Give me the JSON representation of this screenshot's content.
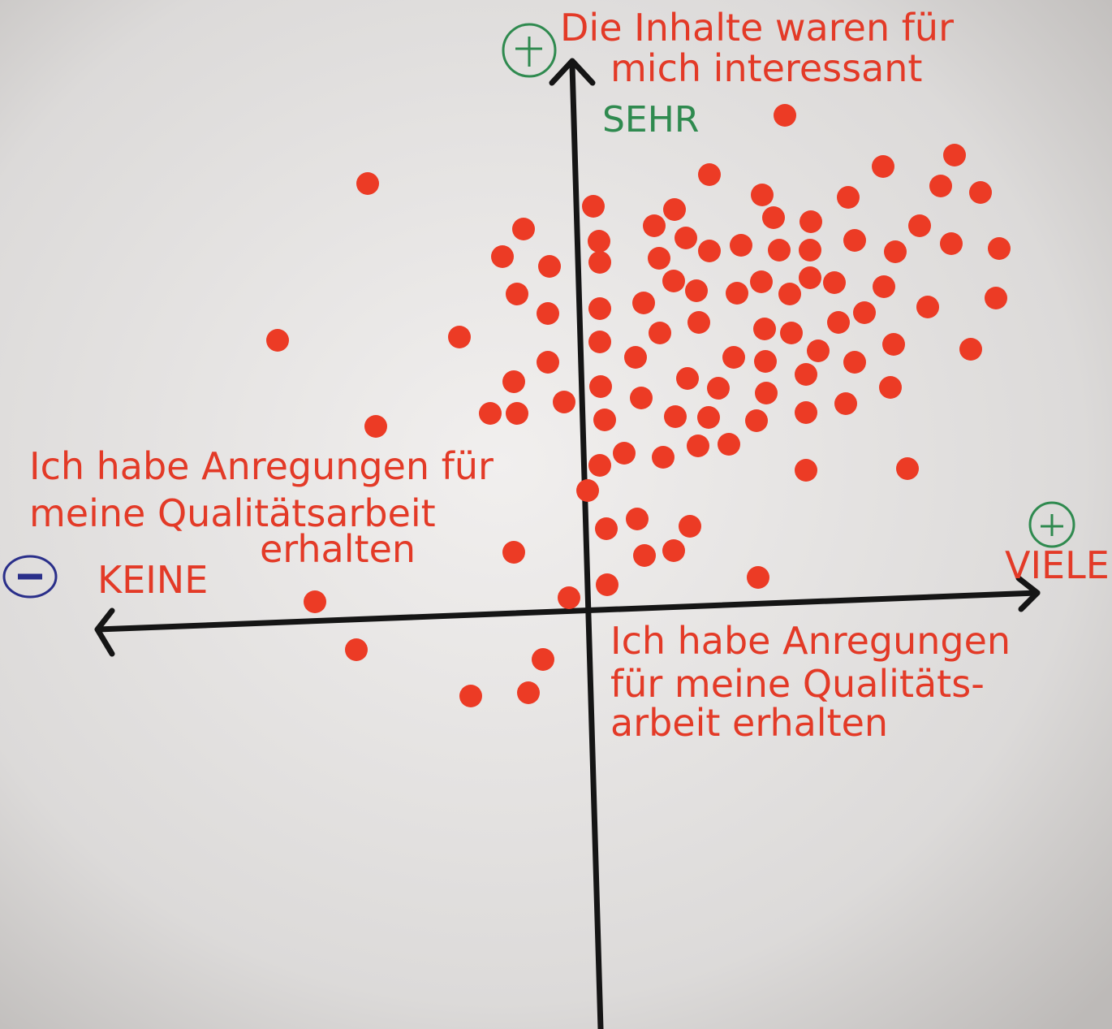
{
  "y_axis": {
    "label_lines": [
      "Die Inhalte waren für",
      "mich interessant"
    ],
    "top_label": "SEHR"
  },
  "x_axis": {
    "left_label_lines": [
      "Ich habe Anregungen für",
      "meine Qualitätsarbeit",
      "erhalten"
    ],
    "left_end": "KEINE",
    "right_end": "VIELE",
    "right_label_lines": [
      "Ich habe Anregungen",
      "für meine Qualitäts-",
      "arbeit erhalten"
    ]
  }
}
